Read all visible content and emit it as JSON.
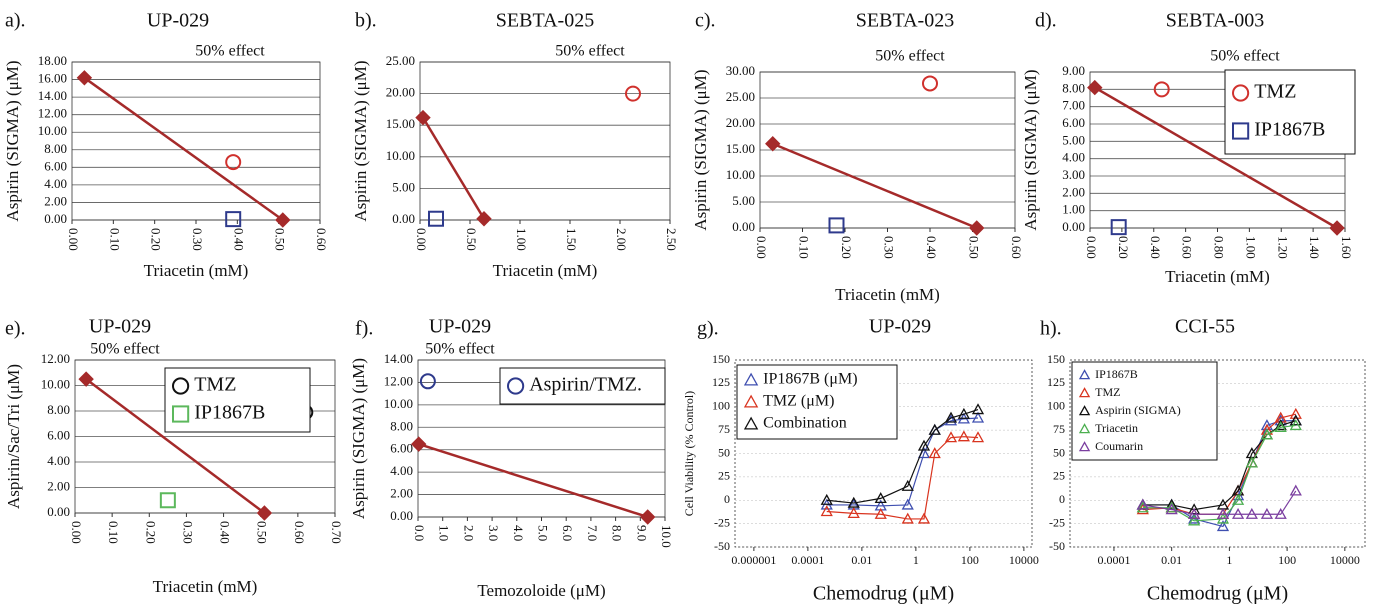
{
  "chart_data": [
    {
      "type": "scatter",
      "panel": "a).",
      "title": "UP-029",
      "subtitle": "50% effect",
      "ylabel": "Aspirin (SIGMA) (μM)",
      "xlabel": "Triacetin (mM)",
      "grid": true,
      "xlim": [
        0,
        0.6
      ],
      "xticks": [
        {
          "value": 0,
          "label": "0.00"
        },
        {
          "value": 0.1,
          "label": "0.10"
        },
        {
          "value": 0.2,
          "label": "0.20"
        },
        {
          "value": 0.3,
          "label": "0.30"
        },
        {
          "value": 0.4,
          "label": "0.40"
        },
        {
          "value": 0.5,
          "label": "0.50"
        },
        {
          "value": 0.6,
          "label": "0.60"
        }
      ],
      "ylim": [
        0,
        18
      ],
      "yticks": [
        {
          "value": 0,
          "label": "0.00"
        },
        {
          "value": 2,
          "label": "2.00"
        },
        {
          "value": 4,
          "label": "4.00"
        },
        {
          "value": 6,
          "label": "6.00"
        },
        {
          "value": 8,
          "label": "8.00"
        },
        {
          "value": 10,
          "label": "10.00"
        },
        {
          "value": 12,
          "label": "12.00"
        },
        {
          "value": 14,
          "label": "14.00"
        },
        {
          "value": 16,
          "label": "16.00"
        },
        {
          "value": 18,
          "label": "18.00"
        }
      ],
      "series": [
        {
          "color": "#a52a2a",
          "marker": "diamond",
          "line": true,
          "x": [
            0.03,
            0.51
          ],
          "values": [
            16.2,
            0
          ]
        },
        {
          "color": "#d0312d",
          "marker": "circle",
          "x": [
            0.39
          ],
          "values": [
            6.6
          ]
        },
        {
          "color": "#2e3a8c",
          "marker": "square",
          "x": [
            0.39
          ],
          "values": [
            0.1
          ]
        }
      ]
    },
    {
      "type": "scatter",
      "panel": "b).",
      "title": "SEBTA-025",
      "subtitle": "50% effect",
      "ylabel": "Aspirin (SIGMA) (μM)",
      "xlabel": "Triacetin (mM)",
      "grid": true,
      "xlim": [
        0,
        2.5
      ],
      "xticks": [
        {
          "value": 0,
          "label": "0.00"
        },
        {
          "value": 0.5,
          "label": "0.50"
        },
        {
          "value": 1,
          "label": "1.00"
        },
        {
          "value": 1.5,
          "label": "1.50"
        },
        {
          "value": 2,
          "label": "2.00"
        },
        {
          "value": 2.5,
          "label": "2.50"
        }
      ],
      "ylim": [
        0,
        25
      ],
      "yticks": [
        {
          "value": 0,
          "label": "0.00"
        },
        {
          "value": 5,
          "label": "5.00"
        },
        {
          "value": 10,
          "label": "10.00"
        },
        {
          "value": 15,
          "label": "15.00"
        },
        {
          "value": 20,
          "label": "20.00"
        },
        {
          "value": 25,
          "label": "25.00"
        }
      ],
      "series": [
        {
          "color": "#a52a2a",
          "marker": "diamond",
          "line": true,
          "x": [
            0.03,
            0.64
          ],
          "values": [
            16.2,
            0.2
          ]
        },
        {
          "color": "#d0312d",
          "marker": "circle",
          "x": [
            2.13
          ],
          "values": [
            20
          ]
        },
        {
          "color": "#2e3a8c",
          "marker": "square",
          "x": [
            0.16
          ],
          "values": [
            0.2
          ]
        }
      ]
    },
    {
      "type": "scatter",
      "panel": "c).",
      "title": "SEBTA-023",
      "subtitle": "50% effect",
      "ylabel": "Aspirin (SIGMA) (μM)",
      "xlabel": "Triacetin (mM)",
      "grid": true,
      "xlim": [
        0,
        0.6
      ],
      "xticks": [
        {
          "value": 0,
          "label": "0.00"
        },
        {
          "value": 0.1,
          "label": "0.10"
        },
        {
          "value": 0.2,
          "label": "0.20"
        },
        {
          "value": 0.3,
          "label": "0.30"
        },
        {
          "value": 0.4,
          "label": "0.40"
        },
        {
          "value": 0.5,
          "label": "0.50"
        },
        {
          "value": 0.6,
          "label": "0.60"
        }
      ],
      "ylim": [
        0,
        30
      ],
      "yticks": [
        {
          "value": 0,
          "label": "0.00"
        },
        {
          "value": 5,
          "label": "5.00"
        },
        {
          "value": 10,
          "label": "10.00"
        },
        {
          "value": 15,
          "label": "15.00"
        },
        {
          "value": 20,
          "label": "20.00"
        },
        {
          "value": 25,
          "label": "25.00"
        },
        {
          "value": 30,
          "label": "30.00"
        }
      ],
      "series": [
        {
          "color": "#a52a2a",
          "marker": "diamond",
          "line": true,
          "x": [
            0.03,
            0.51
          ],
          "values": [
            16.2,
            0
          ]
        },
        {
          "color": "#d0312d",
          "marker": "circle",
          "x": [
            0.4
          ],
          "values": [
            27.8
          ]
        },
        {
          "color": "#2e3a8c",
          "marker": "square",
          "x": [
            0.18
          ],
          "values": [
            0.5
          ]
        }
      ]
    },
    {
      "type": "scatter",
      "panel": "d).",
      "title": "SEBTA-003",
      "subtitle": "50% effect",
      "ylabel": "Aspirin (SIGMA) (μM)",
      "xlabel": "Triacetin (mM)",
      "grid": true,
      "legend": "upper right",
      "xlim": [
        0,
        1.6
      ],
      "xticks": [
        {
          "value": 0,
          "label": "0.00"
        },
        {
          "value": 0.2,
          "label": "0.20"
        },
        {
          "value": 0.4,
          "label": "0.40"
        },
        {
          "value": 0.6,
          "label": "0.60"
        },
        {
          "value": 0.8,
          "label": "0.80"
        },
        {
          "value": 1,
          "label": "1.00"
        },
        {
          "value": 1.2,
          "label": "1.20"
        },
        {
          "value": 1.4,
          "label": "1.40"
        },
        {
          "value": 1.6,
          "label": "1.60"
        }
      ],
      "ylim": [
        0,
        9
      ],
      "yticks": [
        {
          "value": 0,
          "label": "0.00"
        },
        {
          "value": 1,
          "label": "1.00"
        },
        {
          "value": 2,
          "label": "2.00"
        },
        {
          "value": 3,
          "label": "3.00"
        },
        {
          "value": 4,
          "label": "4.00"
        },
        {
          "value": 5,
          "label": "5.00"
        },
        {
          "value": 6,
          "label": "6.00"
        },
        {
          "value": 7,
          "label": "7.00"
        },
        {
          "value": 8,
          "label": "8.00"
        },
        {
          "value": 9,
          "label": "9.00"
        }
      ],
      "series": [
        {
          "color": "#a52a2a",
          "marker": "diamond",
          "line": true,
          "x": [
            0.03,
            1.55
          ],
          "values": [
            8.1,
            0
          ]
        },
        {
          "name": "TMZ",
          "color": "#d0312d",
          "marker": "circle",
          "x": [
            0.45
          ],
          "values": [
            8.0
          ]
        },
        {
          "name": "IP1867B",
          "color": "#2e3a8c",
          "marker": "square",
          "x": [
            0.18
          ],
          "values": [
            0.05
          ]
        }
      ]
    },
    {
      "type": "scatter",
      "panel": "e).",
      "title": "UP-029",
      "subtitle": "50% effect",
      "ylabel": "Aspirin/Sac/Tri (μM)",
      "xlabel": "Triacetin (mM)",
      "grid": true,
      "legend": "upper right",
      "xlim": [
        0,
        0.7
      ],
      "xticks": [
        {
          "value": 0,
          "label": "0.00"
        },
        {
          "value": 0.1,
          "label": "0.10"
        },
        {
          "value": 0.2,
          "label": "0.20"
        },
        {
          "value": 0.3,
          "label": "0.30"
        },
        {
          "value": 0.4,
          "label": "0.40"
        },
        {
          "value": 0.5,
          "label": "0.50"
        },
        {
          "value": 0.6,
          "label": "0.60"
        },
        {
          "value": 0.7,
          "label": "0.70"
        }
      ],
      "ylim": [
        0,
        12
      ],
      "yticks": [
        {
          "value": 0,
          "label": "0.00"
        },
        {
          "value": 2,
          "label": "2.00"
        },
        {
          "value": 4,
          "label": "4.00"
        },
        {
          "value": 6,
          "label": "6.00"
        },
        {
          "value": 8,
          "label": "8.00"
        },
        {
          "value": 10,
          "label": "10.00"
        },
        {
          "value": 12,
          "label": "12.00"
        }
      ],
      "series": [
        {
          "color": "#a52a2a",
          "marker": "diamond",
          "line": true,
          "x": [
            0.03,
            0.51
          ],
          "values": [
            10.5,
            0
          ]
        },
        {
          "name": "TMZ",
          "color": "#111111",
          "marker": "circle",
          "x": [
            0.62
          ],
          "values": [
            7.9
          ]
        },
        {
          "name": "IP1867B",
          "color": "#5cb85c",
          "marker": "square",
          "x": [
            0.25
          ],
          "values": [
            1.0
          ]
        }
      ]
    },
    {
      "type": "scatter",
      "panel": "f).",
      "title": "UP-029",
      "subtitle": "50% effect",
      "ylabel": "Aspirin (SIGMA) (μM)",
      "xlabel": "Temozoloide (μM)",
      "grid": true,
      "legend": "upper right",
      "xlim": [
        0,
        10
      ],
      "xticks": [
        {
          "value": 0,
          "label": "0.0"
        },
        {
          "value": 1,
          "label": "1.0"
        },
        {
          "value": 2,
          "label": "2.0"
        },
        {
          "value": 3,
          "label": "3.0"
        },
        {
          "value": 4,
          "label": "4.0"
        },
        {
          "value": 5,
          "label": "5.0"
        },
        {
          "value": 6,
          "label": "6.0"
        },
        {
          "value": 7,
          "label": "7.0"
        },
        {
          "value": 8,
          "label": "8.0"
        },
        {
          "value": 9,
          "label": "9.0"
        },
        {
          "value": 10,
          "label": "10.0"
        }
      ],
      "ylim": [
        0,
        14
      ],
      "yticks": [
        {
          "value": 0,
          "label": "0.00"
        },
        {
          "value": 2,
          "label": "2.00"
        },
        {
          "value": 4,
          "label": "4.00"
        },
        {
          "value": 6,
          "label": "6.00"
        },
        {
          "value": 8,
          "label": "8.00"
        },
        {
          "value": 10,
          "label": "10.00"
        },
        {
          "value": 12,
          "label": "12.00"
        },
        {
          "value": 14,
          "label": "14.00"
        }
      ],
      "series": [
        {
          "color": "#a52a2a",
          "marker": "diamond",
          "line": true,
          "x": [
            0.03,
            9.3
          ],
          "values": [
            6.5,
            0
          ]
        },
        {
          "name": "Aspirin/TMZ.",
          "color": "#2e3a8c",
          "marker": "circle",
          "x": [
            0.4
          ],
          "values": [
            12.1
          ]
        }
      ]
    },
    {
      "type": "line",
      "panel": "g).",
      "title": "UP-029",
      "ylabel": "Cell Viability (% Control)",
      "xlabel": "Chemodrug (μM)",
      "xlog": true,
      "grid": true,
      "legend": "upper left",
      "xlim": [
        2e-07,
        20000
      ],
      "xticks": [
        1e-06,
        0.0001,
        0.01,
        1,
        100,
        10000
      ],
      "ylim": [
        -50,
        150
      ],
      "yticks": [
        -50,
        -25,
        0,
        25,
        50,
        75,
        100,
        125,
        150
      ],
      "x": [
        0.0005,
        0.005,
        0.05,
        0.5,
        2,
        5,
        20,
        60,
        200
      ],
      "series": [
        {
          "name": "IP1867B (μM)",
          "color": "#3f4fb0",
          "marker": "triangle",
          "line": true,
          "values": [
            -5,
            -5,
            -6,
            -5,
            50,
            75,
            85,
            87,
            88
          ]
        },
        {
          "name": "TMZ (μM)",
          "color": "#d9341f",
          "marker": "triangle",
          "line": true,
          "values": [
            -12,
            -14,
            -15,
            -20,
            -20,
            50,
            67,
            68,
            67
          ]
        },
        {
          "name": "Combination",
          "color": "#111111",
          "marker": "triangle",
          "line": true,
          "values": [
            0,
            -3,
            2,
            15,
            58,
            75,
            88,
            92,
            97
          ]
        }
      ]
    },
    {
      "type": "line",
      "panel": "h).",
      "title": "CCI-55",
      "xlabel": "Chemodrug (μM)",
      "xlog": true,
      "grid": true,
      "legend": "upper left",
      "xlim": [
        3e-06,
        50000
      ],
      "xticks": [
        0.0001,
        0.01,
        1,
        100,
        10000
      ],
      "ylim": [
        -50,
        150
      ],
      "yticks": [
        -50,
        -25,
        0,
        25,
        50,
        75,
        100,
        125,
        150
      ],
      "x": [
        0.001,
        0.01,
        0.06,
        0.6,
        2,
        6,
        20,
        60,
        200
      ],
      "series": [
        {
          "name": "IP1867B",
          "color": "#3f4fb0",
          "marker": "triangle",
          "line": true,
          "values": [
            -5,
            -5,
            -20,
            -28,
            5,
            40,
            80,
            85,
            85
          ]
        },
        {
          "name": "TMZ",
          "color": "#d9341f",
          "marker": "triangle",
          "line": true,
          "values": [
            -10,
            -8,
            -15,
            -15,
            10,
            40,
            75,
            88,
            92
          ]
        },
        {
          "name": "Aspirin (SIGMA)",
          "color": "#111111",
          "marker": "triangle",
          "line": true,
          "values": [
            -5,
            -5,
            -10,
            -5,
            10,
            50,
            70,
            80,
            85
          ]
        },
        {
          "name": "Triacetin",
          "color": "#4caf50",
          "marker": "triangle",
          "line": true,
          "values": [
            -8,
            -8,
            -22,
            -20,
            0,
            40,
            70,
            78,
            80
          ]
        },
        {
          "name": "Coumarin",
          "color": "#7b3fa0",
          "marker": "triangle",
          "line": true,
          "values": [
            -5,
            -10,
            -15,
            -15,
            -15,
            -15,
            -15,
            -15,
            10
          ]
        }
      ]
    }
  ]
}
